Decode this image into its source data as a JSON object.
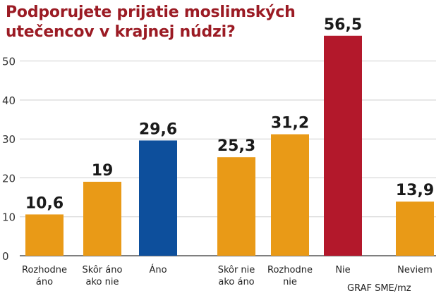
{
  "title_lines": [
    "Podporujete prijatie moslimských",
    "utečencov v krajnej núdzi?"
  ],
  "source": "GRAF SME/mz",
  "chart_data": {
    "type": "bar",
    "title": "Podporujete prijatie moslimských utečencov v krajnej núdzi?",
    "ylim": [
      0,
      57
    ],
    "yticks": [
      0,
      10,
      20,
      30,
      40,
      50
    ],
    "ytick_labels": [
      "0",
      "10",
      "20",
      "30",
      "40",
      "50"
    ],
    "grid": true,
    "categories": [
      [
        "Rozhodne",
        "áno"
      ],
      [
        "Skôr áno",
        "ako nie"
      ],
      [
        "Áno"
      ],
      [
        "Skôr nie",
        "ako áno"
      ],
      [
        "Rozhodne",
        "nie"
      ],
      [
        "Nie"
      ],
      [
        "Neviem"
      ]
    ],
    "values": [
      10.6,
      19,
      29.6,
      25.3,
      31.2,
      56.5,
      13.9
    ],
    "value_labels": [
      "10,6",
      "19",
      "29,6",
      "25,3",
      "31,2",
      "56,5",
      "13,9"
    ],
    "colors": [
      "#e99a17",
      "#e99a17",
      "#0d4f9c",
      "#e99a17",
      "#e99a17",
      "#b3182b",
      "#e99a17"
    ]
  }
}
